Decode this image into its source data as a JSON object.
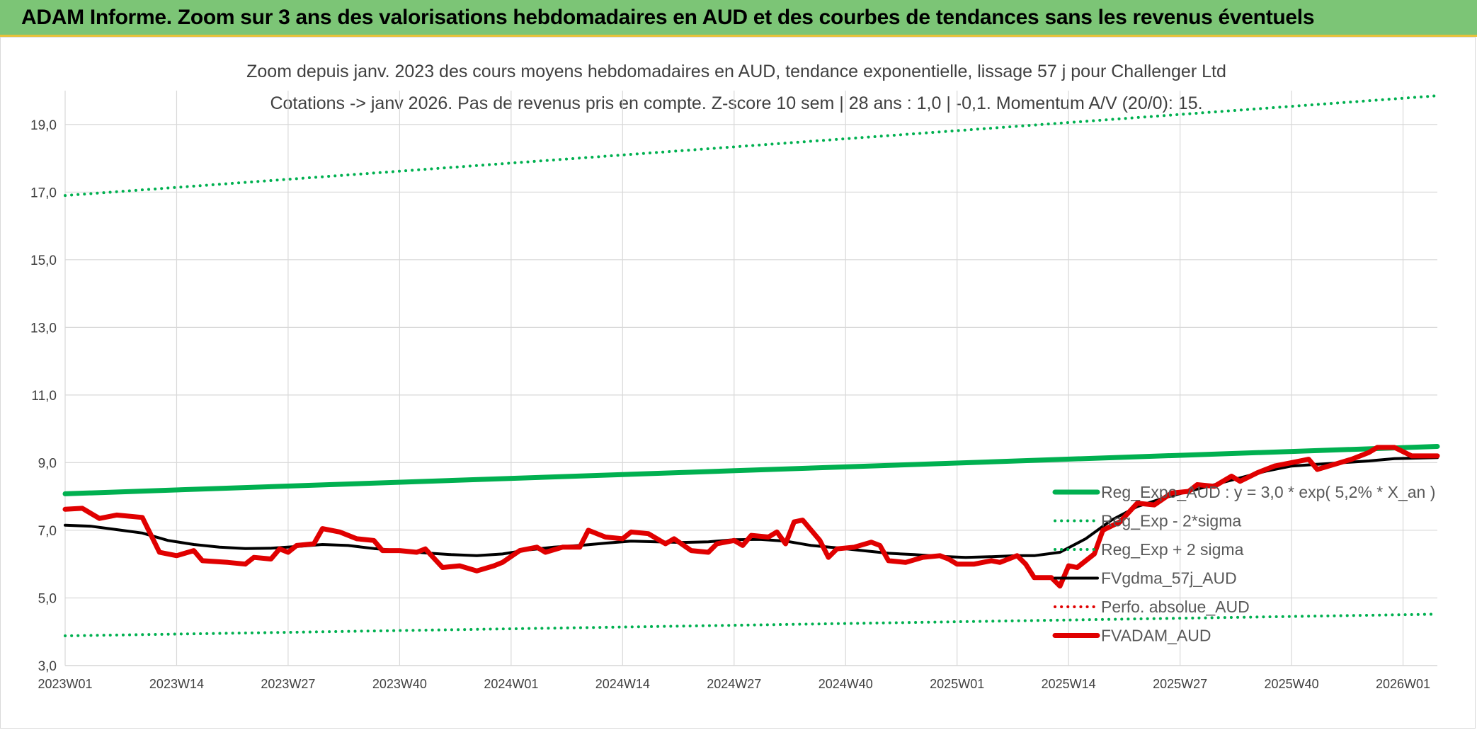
{
  "header": {
    "title": "ADAM Informe. Zoom sur 3 ans des valorisations hebdomadaires en AUD et des courbes de tendances sans les revenus éventuels"
  },
  "colors": {
    "banner": "#7cc576",
    "reg_expo": "#00b050",
    "fvgdma": "#000000",
    "fvadam": "#e00000",
    "perfo": "#e00000",
    "grid": "#d9d9d9"
  },
  "chart_data": {
    "type": "line",
    "title": "Zoom depuis janv. 2023 des cours moyens hebdomadaires en AUD, tendance exponentielle, lissage 57 j pour Challenger Ltd",
    "subtitle": "Cotations -> janv 2026. Pas de revenus pris en compte. Z-score 10 sem | 28 ans : 1,0 | -0,1. Momentum A/V (20/0): 15.",
    "xlabel": "",
    "ylabel": "",
    "ylim": [
      3.0,
      20.0
    ],
    "yticks": [
      "3,0",
      "5,0",
      "7,0",
      "9,0",
      "11,0",
      "13,0",
      "15,0",
      "17,0",
      "19,0"
    ],
    "xticks": [
      "2023W01",
      "2023W14",
      "2023W27",
      "2023W40",
      "2024W01",
      "2024W14",
      "2024W27",
      "2024W40",
      "2025W01",
      "2025W14",
      "2025W27",
      "2025W40",
      "2026W01"
    ],
    "grid": true,
    "legend_position": "bottom-right",
    "series": [
      {
        "name": "Reg_Expo_AUD : y = 3,0 * exp( 5,2% *  X_an )",
        "style": "solid-thick",
        "color": "#00b050",
        "points": [
          [
            "2023W01",
            8.08
          ],
          [
            "2026W05",
            9.48
          ]
        ]
      },
      {
        "name": "Reg_Exp - 2*sigma",
        "style": "dotted",
        "color": "#00b050",
        "points": [
          [
            "2023W01",
            3.88
          ],
          [
            "2026W05",
            4.52
          ]
        ]
      },
      {
        "name": "Reg_Exp + 2 sigma",
        "style": "dotted",
        "color": "#00b050",
        "points": [
          [
            "2023W01",
            16.9
          ],
          [
            "2026W05",
            19.85
          ]
        ]
      },
      {
        "name": "FVgdma_57j_AUD",
        "style": "solid",
        "color": "#000000",
        "points": [
          [
            "2023W01",
            7.15
          ],
          [
            "2023W04",
            7.12
          ],
          [
            "2023W07",
            7.02
          ],
          [
            "2023W10",
            6.92
          ],
          [
            "2023W13",
            6.7
          ],
          [
            "2023W16",
            6.58
          ],
          [
            "2023W19",
            6.5
          ],
          [
            "2023W22",
            6.46
          ],
          [
            "2023W25",
            6.47
          ],
          [
            "2023W28",
            6.52
          ],
          [
            "2023W31",
            6.58
          ],
          [
            "2023W34",
            6.55
          ],
          [
            "2023W37",
            6.46
          ],
          [
            "2023W40",
            6.4
          ],
          [
            "2023W43",
            6.33
          ],
          [
            "2023W46",
            6.28
          ],
          [
            "2023W49",
            6.25
          ],
          [
            "2023W52",
            6.3
          ],
          [
            "2024W03",
            6.42
          ],
          [
            "2024W06",
            6.5
          ],
          [
            "2024W09",
            6.55
          ],
          [
            "2024W12",
            6.62
          ],
          [
            "2024W15",
            6.68
          ],
          [
            "2024W18",
            6.66
          ],
          [
            "2024W21",
            6.64
          ],
          [
            "2024W24",
            6.66
          ],
          [
            "2024W27",
            6.72
          ],
          [
            "2024W30",
            6.73
          ],
          [
            "2024W33",
            6.68
          ],
          [
            "2024W36",
            6.55
          ],
          [
            "2024W39",
            6.48
          ],
          [
            "2024W42",
            6.4
          ],
          [
            "2024W45",
            6.32
          ],
          [
            "2024W48",
            6.28
          ],
          [
            "2024W51",
            6.23
          ],
          [
            "2025W02",
            6.2
          ],
          [
            "2025W05",
            6.22
          ],
          [
            "2025W08",
            6.25
          ],
          [
            "2025W10",
            6.25
          ],
          [
            "2025W13",
            6.35
          ],
          [
            "2025W16",
            6.75
          ],
          [
            "2025W19",
            7.3
          ],
          [
            "2025W22",
            7.7
          ],
          [
            "2025W25",
            7.95
          ],
          [
            "2025W28",
            8.15
          ],
          [
            "2025W31",
            8.35
          ],
          [
            "2025W34",
            8.55
          ],
          [
            "2025W37",
            8.75
          ],
          [
            "2025W40",
            8.9
          ],
          [
            "2025W43",
            8.95
          ],
          [
            "2025W46",
            9.0
          ],
          [
            "2025W49",
            9.05
          ],
          [
            "2025W52",
            9.12
          ],
          [
            "2026W05",
            9.15
          ]
        ]
      },
      {
        "name": "Perfo. absolue_AUD",
        "style": "dotted",
        "color": "#e00000",
        "points": []
      },
      {
        "name": "FVADAM_AUD",
        "style": "solid-thick",
        "color": "#e00000",
        "points": [
          [
            "2023W01",
            7.62
          ],
          [
            "2023W03",
            7.65
          ],
          [
            "2023W05",
            7.35
          ],
          [
            "2023W07",
            7.45
          ],
          [
            "2023W10",
            7.38
          ],
          [
            "2023W12",
            6.35
          ],
          [
            "2023W14",
            6.25
          ],
          [
            "2023W16",
            6.4
          ],
          [
            "2023W17",
            6.1
          ],
          [
            "2023W20",
            6.05
          ],
          [
            "2023W22",
            6.0
          ],
          [
            "2023W23",
            6.2
          ],
          [
            "2023W25",
            6.15
          ],
          [
            "2023W26",
            6.45
          ],
          [
            "2023W27",
            6.35
          ],
          [
            "2023W28",
            6.55
          ],
          [
            "2023W30",
            6.6
          ],
          [
            "2023W31",
            7.05
          ],
          [
            "2023W33",
            6.95
          ],
          [
            "2023W35",
            6.75
          ],
          [
            "2023W37",
            6.7
          ],
          [
            "2023W38",
            6.4
          ],
          [
            "2023W40",
            6.4
          ],
          [
            "2023W42",
            6.35
          ],
          [
            "2023W43",
            6.45
          ],
          [
            "2023W45",
            5.9
          ],
          [
            "2023W47",
            5.95
          ],
          [
            "2023W49",
            5.8
          ],
          [
            "2023W51",
            5.95
          ],
          [
            "2023W52",
            6.05
          ],
          [
            "2024W02",
            6.4
          ],
          [
            "2024W04",
            6.5
          ],
          [
            "2024W05",
            6.35
          ],
          [
            "2024W07",
            6.5
          ],
          [
            "2024W09",
            6.5
          ],
          [
            "2024W10",
            7.0
          ],
          [
            "2024W12",
            6.8
          ],
          [
            "2024W14",
            6.75
          ],
          [
            "2024W15",
            6.95
          ],
          [
            "2024W17",
            6.9
          ],
          [
            "2024W19",
            6.6
          ],
          [
            "2024W20",
            6.75
          ],
          [
            "2024W22",
            6.4
          ],
          [
            "2024W24",
            6.35
          ],
          [
            "2024W25",
            6.6
          ],
          [
            "2024W27",
            6.7
          ],
          [
            "2024W28",
            6.55
          ],
          [
            "2024W29",
            6.85
          ],
          [
            "2024W31",
            6.8
          ],
          [
            "2024W32",
            6.95
          ],
          [
            "2024W33",
            6.6
          ],
          [
            "2024W34",
            7.25
          ],
          [
            "2024W35",
            7.3
          ],
          [
            "2024W37",
            6.7
          ],
          [
            "2024W38",
            6.2
          ],
          [
            "2024W39",
            6.45
          ],
          [
            "2024W41",
            6.5
          ],
          [
            "2024W43",
            6.65
          ],
          [
            "2024W44",
            6.55
          ],
          [
            "2024W45",
            6.1
          ],
          [
            "2024W47",
            6.05
          ],
          [
            "2024W49",
            6.2
          ],
          [
            "2024W51",
            6.25
          ],
          [
            "2024W52",
            6.15
          ],
          [
            "2025W01",
            6.0
          ],
          [
            "2025W03",
            6.0
          ],
          [
            "2025W05",
            6.1
          ],
          [
            "2025W06",
            6.05
          ],
          [
            "2025W08",
            6.25
          ],
          [
            "2025W09",
            6.0
          ],
          [
            "2025W10",
            5.6
          ],
          [
            "2025W12",
            5.6
          ],
          [
            "2025W13",
            5.35
          ],
          [
            "2025W14",
            5.95
          ],
          [
            "2025W15",
            5.9
          ],
          [
            "2025W17",
            6.3
          ],
          [
            "2025W18",
            7.0
          ],
          [
            "2025W20",
            7.25
          ],
          [
            "2025W22",
            7.8
          ],
          [
            "2025W24",
            7.75
          ],
          [
            "2025W26",
            8.1
          ],
          [
            "2025W28",
            8.15
          ],
          [
            "2025W29",
            8.35
          ],
          [
            "2025W31",
            8.3
          ],
          [
            "2025W33",
            8.6
          ],
          [
            "2025W34",
            8.45
          ],
          [
            "2025W36",
            8.7
          ],
          [
            "2025W38",
            8.9
          ],
          [
            "2025W40",
            9.0
          ],
          [
            "2025W42",
            9.1
          ],
          [
            "2025W43",
            8.8
          ],
          [
            "2025W45",
            8.95
          ],
          [
            "2025W47",
            9.1
          ],
          [
            "2025W49",
            9.3
          ],
          [
            "2025W50",
            9.45
          ],
          [
            "2025W52",
            9.45
          ],
          [
            "2026W02",
            9.2
          ],
          [
            "2026W05",
            9.2
          ]
        ]
      }
    ]
  }
}
